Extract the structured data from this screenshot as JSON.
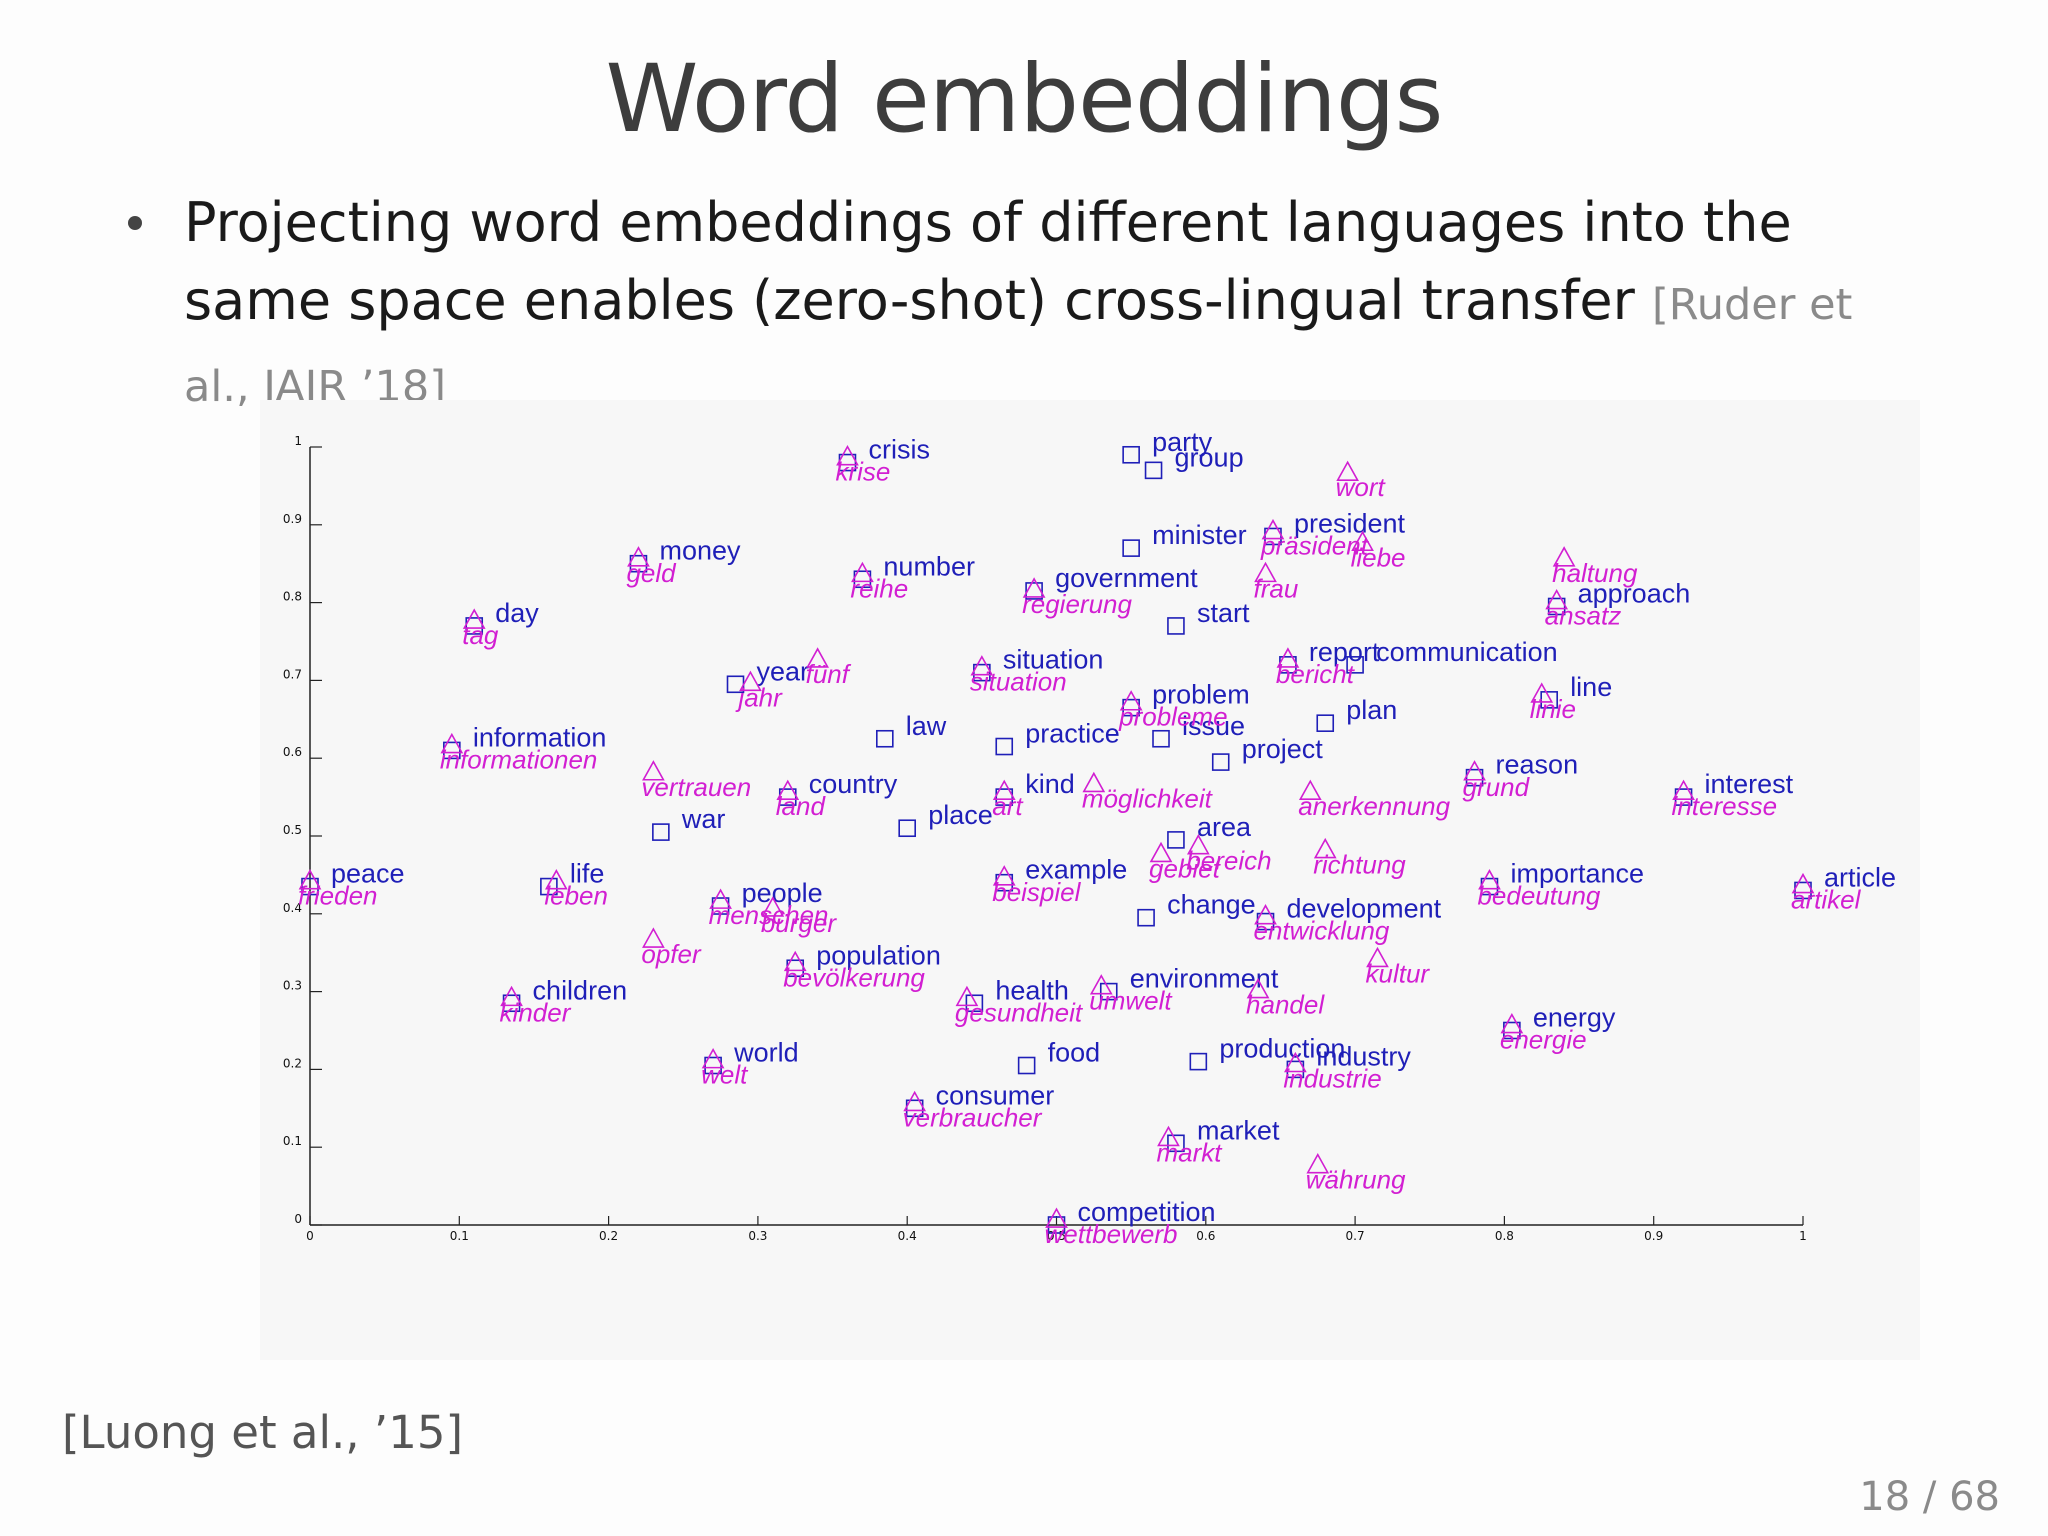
{
  "slide": {
    "title": "Word embeddings",
    "bullet_text": "Projecting word embeddings of different languages into the same space enables (zero-shot) cross-lingual transfer",
    "bullet_citation": "[Ruder et al., JAIR ’18]",
    "footer_citation": "[Luong et al., ’15]",
    "page_number": "18 / 68"
  },
  "colors": {
    "english": "#1f1fb8",
    "german": "#d21fd2",
    "axis": "#222222"
  },
  "chart_data": {
    "type": "scatter",
    "title": "",
    "xlabel": "",
    "ylabel": "",
    "xlim": [
      0,
      1
    ],
    "ylim": [
      0,
      1
    ],
    "x_ticks": [
      0,
      0.1,
      0.2,
      0.3,
      0.4,
      0.5,
      0.6,
      0.7,
      0.8,
      0.9,
      1
    ],
    "y_ticks": [
      0,
      0.1,
      0.2,
      0.3,
      0.4,
      0.5,
      0.6,
      0.7,
      0.8,
      0.9,
      1
    ],
    "grid": false,
    "legend": "none",
    "series": [
      {
        "marker": "square",
        "color": "#1f1fb8",
        "points": [
          {
            "label": "crisis",
            "x": 0.36,
            "y": 0.98
          },
          {
            "label": "party",
            "x": 0.55,
            "y": 0.99
          },
          {
            "label": "group",
            "x": 0.565,
            "y": 0.97
          },
          {
            "label": "minister",
            "x": 0.55,
            "y": 0.87
          },
          {
            "label": "president",
            "x": 0.645,
            "y": 0.885
          },
          {
            "label": "money",
            "x": 0.22,
            "y": 0.85
          },
          {
            "label": "number",
            "x": 0.37,
            "y": 0.83
          },
          {
            "label": "government",
            "x": 0.485,
            "y": 0.815
          },
          {
            "label": "start",
            "x": 0.58,
            "y": 0.77
          },
          {
            "label": "approach",
            "x": 0.835,
            "y": 0.795
          },
          {
            "label": "day",
            "x": 0.11,
            "y": 0.77
          },
          {
            "label": "situation",
            "x": 0.45,
            "y": 0.71
          },
          {
            "label": "report",
            "x": 0.655,
            "y": 0.72
          },
          {
            "label": "communication",
            "x": 0.7,
            "y": 0.72
          },
          {
            "label": "year",
            "x": 0.285,
            "y": 0.695
          },
          {
            "label": "line",
            "x": 0.83,
            "y": 0.675
          },
          {
            "label": "problem",
            "x": 0.55,
            "y": 0.665
          },
          {
            "label": "law",
            "x": 0.385,
            "y": 0.625
          },
          {
            "label": "practice",
            "x": 0.465,
            "y": 0.615
          },
          {
            "label": "issue",
            "x": 0.57,
            "y": 0.625
          },
          {
            "label": "plan",
            "x": 0.68,
            "y": 0.645
          },
          {
            "label": "project",
            "x": 0.61,
            "y": 0.595
          },
          {
            "label": "information",
            "x": 0.095,
            "y": 0.61
          },
          {
            "label": "reason",
            "x": 0.78,
            "y": 0.575
          },
          {
            "label": "country",
            "x": 0.32,
            "y": 0.55
          },
          {
            "label": "kind",
            "x": 0.465,
            "y": 0.55
          },
          {
            "label": "interest",
            "x": 0.92,
            "y": 0.55
          },
          {
            "label": "war",
            "x": 0.235,
            "y": 0.505
          },
          {
            "label": "place",
            "x": 0.4,
            "y": 0.51
          },
          {
            "label": "area",
            "x": 0.58,
            "y": 0.495
          },
          {
            "label": "peace",
            "x": 0.0,
            "y": 0.435
          },
          {
            "label": "life",
            "x": 0.16,
            "y": 0.435
          },
          {
            "label": "example",
            "x": 0.465,
            "y": 0.44
          },
          {
            "label": "importance",
            "x": 0.79,
            "y": 0.435
          },
          {
            "label": "article",
            "x": 1.0,
            "y": 0.43
          },
          {
            "label": "people",
            "x": 0.275,
            "y": 0.41
          },
          {
            "label": "change",
            "x": 0.56,
            "y": 0.395
          },
          {
            "label": "development",
            "x": 0.64,
            "y": 0.39
          },
          {
            "label": "population",
            "x": 0.325,
            "y": 0.33
          },
          {
            "label": "environment",
            "x": 0.535,
            "y": 0.3
          },
          {
            "label": "health",
            "x": 0.445,
            "y": 0.285
          },
          {
            "label": "children",
            "x": 0.135,
            "y": 0.285
          },
          {
            "label": "energy",
            "x": 0.805,
            "y": 0.25
          },
          {
            "label": "world",
            "x": 0.27,
            "y": 0.205
          },
          {
            "label": "food",
            "x": 0.48,
            "y": 0.205
          },
          {
            "label": "production",
            "x": 0.595,
            "y": 0.21
          },
          {
            "label": "industry",
            "x": 0.66,
            "y": 0.2
          },
          {
            "label": "consumer",
            "x": 0.405,
            "y": 0.15
          },
          {
            "label": "market",
            "x": 0.58,
            "y": 0.105
          },
          {
            "label": "competition",
            "x": 0.5,
            "y": 0.0
          }
        ]
      },
      {
        "marker": "triangle",
        "color": "#d21fd2",
        "points": [
          {
            "label": "krise",
            "x": 0.36,
            "y": 0.985
          },
          {
            "label": "wort",
            "x": 0.695,
            "y": 0.965
          },
          {
            "label": "präsident",
            "x": 0.645,
            "y": 0.89
          },
          {
            "label": "liebe",
            "x": 0.705,
            "y": 0.875
          },
          {
            "label": "geld",
            "x": 0.22,
            "y": 0.855
          },
          {
            "label": "reihe",
            "x": 0.37,
            "y": 0.835
          },
          {
            "label": "frau",
            "x": 0.64,
            "y": 0.835
          },
          {
            "label": "regierung",
            "x": 0.485,
            "y": 0.815
          },
          {
            "label": "haltung",
            "x": 0.84,
            "y": 0.855
          },
          {
            "label": "ansatz",
            "x": 0.835,
            "y": 0.8
          },
          {
            "label": "tag",
            "x": 0.11,
            "y": 0.775
          },
          {
            "label": "situation",
            "x": 0.45,
            "y": 0.715
          },
          {
            "label": "fünf",
            "x": 0.34,
            "y": 0.725
          },
          {
            "label": "bericht",
            "x": 0.655,
            "y": 0.725
          },
          {
            "label": "jahr",
            "x": 0.295,
            "y": 0.695
          },
          {
            "label": "linie",
            "x": 0.825,
            "y": 0.68
          },
          {
            "label": "probleme",
            "x": 0.55,
            "y": 0.67
          },
          {
            "label": "informationen",
            "x": 0.095,
            "y": 0.615
          },
          {
            "label": "vertrauen",
            "x": 0.23,
            "y": 0.58
          },
          {
            "label": "möglichkeit",
            "x": 0.525,
            "y": 0.565
          },
          {
            "label": "anerkennung",
            "x": 0.67,
            "y": 0.555
          },
          {
            "label": "grund",
            "x": 0.78,
            "y": 0.58
          },
          {
            "label": "interesse",
            "x": 0.92,
            "y": 0.555
          },
          {
            "label": "land",
            "x": 0.32,
            "y": 0.555
          },
          {
            "label": "art",
            "x": 0.465,
            "y": 0.555
          },
          {
            "label": "gebiet",
            "x": 0.57,
            "y": 0.475
          },
          {
            "label": "bereich",
            "x": 0.595,
            "y": 0.485
          },
          {
            "label": "richtung",
            "x": 0.68,
            "y": 0.48
          },
          {
            "label": "frieden",
            "x": 0.0,
            "y": 0.44
          },
          {
            "label": "leben",
            "x": 0.165,
            "y": 0.44
          },
          {
            "label": "beispiel",
            "x": 0.465,
            "y": 0.445
          },
          {
            "label": "bedeutung",
            "x": 0.79,
            "y": 0.44
          },
          {
            "label": "artikel",
            "x": 1.0,
            "y": 0.435
          },
          {
            "label": "menschen",
            "x": 0.275,
            "y": 0.415
          },
          {
            "label": "bürger",
            "x": 0.31,
            "y": 0.405
          },
          {
            "label": "entwicklung",
            "x": 0.64,
            "y": 0.395
          },
          {
            "label": "opfer",
            "x": 0.23,
            "y": 0.365
          },
          {
            "label": "bevölkerung",
            "x": 0.325,
            "y": 0.335
          },
          {
            "label": "kultur",
            "x": 0.715,
            "y": 0.34
          },
          {
            "label": "umwelt",
            "x": 0.53,
            "y": 0.305
          },
          {
            "label": "handel",
            "x": 0.635,
            "y": 0.3
          },
          {
            "label": "gesundheit",
            "x": 0.44,
            "y": 0.29
          },
          {
            "label": "kinder",
            "x": 0.135,
            "y": 0.29
          },
          {
            "label": "energie",
            "x": 0.805,
            "y": 0.255
          },
          {
            "label": "welt",
            "x": 0.27,
            "y": 0.21
          },
          {
            "label": "industrie",
            "x": 0.66,
            "y": 0.205
          },
          {
            "label": "verbraucher",
            "x": 0.405,
            "y": 0.155
          },
          {
            "label": "markt",
            "x": 0.575,
            "y": 0.11
          },
          {
            "label": "währung",
            "x": 0.675,
            "y": 0.075
          },
          {
            "label": "wettbewerb",
            "x": 0.5,
            "y": 0.005
          }
        ]
      }
    ]
  }
}
